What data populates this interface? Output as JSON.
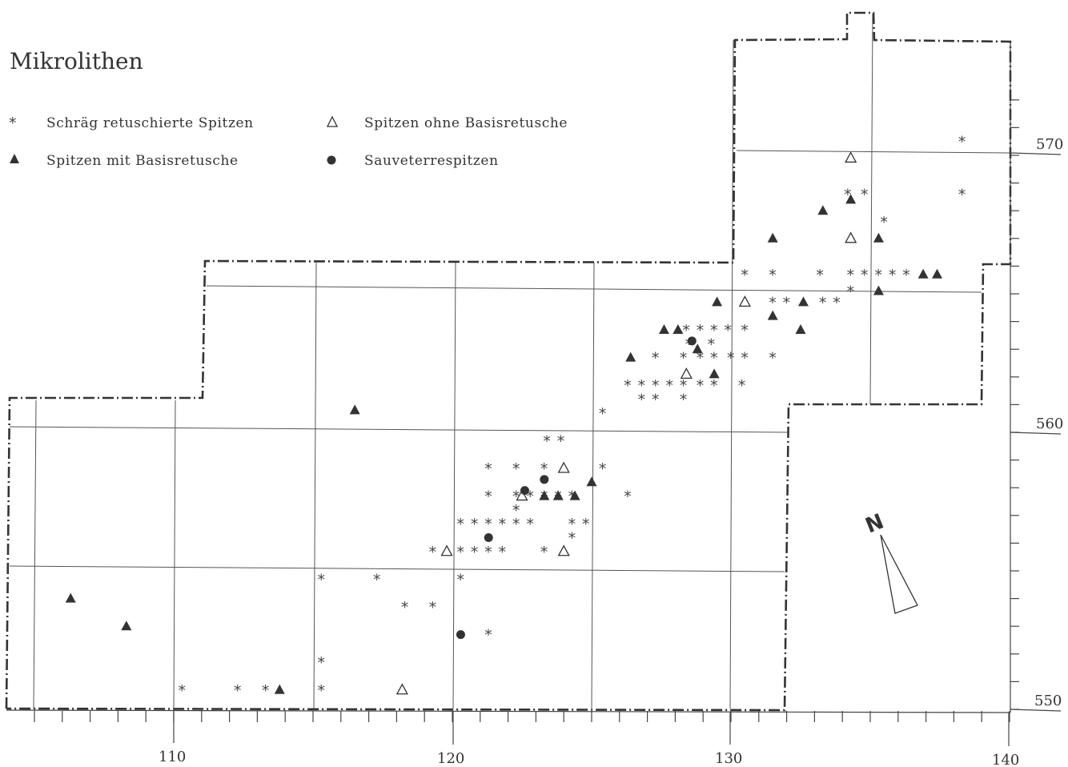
{
  "title": "Mikrolithen",
  "legend": [
    {
      "symbol": "star",
      "label": "Schräg retuschierte Spitzen"
    },
    {
      "symbol": "triangle-filled",
      "label": "Spitzen mit Basisretusche"
    },
    {
      "symbol": "triangle-open",
      "label": "Spitzen ohne Basisretusche"
    },
    {
      "symbol": "dot",
      "label": "Sauveterrespitzen"
    }
  ],
  "north_label": "N",
  "x_axis": {
    "ticks": [
      110,
      120,
      130,
      140
    ],
    "labels": [
      "110",
      "120",
      "130",
      "140"
    ]
  },
  "y_axis": {
    "ticks": [
      550,
      560,
      570
    ],
    "labels": [
      "550",
      "560",
      "570"
    ]
  },
  "colors": {
    "ink": "#333333",
    "grid": "#555555",
    "paper": "#ffffff"
  },
  "points": {
    "star": [
      [
        138.3,
        570.5
      ],
      [
        138.3,
        568.6
      ],
      [
        134.2,
        568.6
      ],
      [
        134.8,
        568.6
      ],
      [
        135.5,
        567.6
      ],
      [
        130.5,
        565.7
      ],
      [
        131.5,
        565.7
      ],
      [
        133.2,
        565.7
      ],
      [
        134.3,
        565.7
      ],
      [
        134.8,
        565.7
      ],
      [
        135.3,
        565.7
      ],
      [
        135.8,
        565.7
      ],
      [
        136.3,
        565.7
      ],
      [
        134.3,
        565.1
      ],
      [
        131.5,
        564.7
      ],
      [
        132.0,
        564.7
      ],
      [
        133.3,
        564.7
      ],
      [
        133.8,
        564.7
      ],
      [
        128.4,
        563.7
      ],
      [
        128.9,
        563.7
      ],
      [
        129.4,
        563.7
      ],
      [
        129.9,
        563.7
      ],
      [
        130.5,
        563.7
      ],
      [
        128.5,
        563.2
      ],
      [
        129.3,
        563.2
      ],
      [
        127.3,
        562.7
      ],
      [
        128.3,
        562.7
      ],
      [
        128.9,
        562.7
      ],
      [
        129.4,
        562.7
      ],
      [
        130.0,
        562.7
      ],
      [
        130.5,
        562.7
      ],
      [
        131.5,
        562.7
      ],
      [
        126.3,
        561.7
      ],
      [
        126.8,
        561.7
      ],
      [
        127.3,
        561.7
      ],
      [
        127.8,
        561.7
      ],
      [
        128.3,
        561.7
      ],
      [
        128.9,
        561.7
      ],
      [
        129.4,
        561.7
      ],
      [
        130.4,
        561.7
      ],
      [
        126.8,
        561.2
      ],
      [
        127.3,
        561.2
      ],
      [
        128.3,
        561.2
      ],
      [
        125.4,
        560.7
      ],
      [
        123.4,
        559.7
      ],
      [
        123.9,
        559.7
      ],
      [
        121.3,
        558.7
      ],
      [
        122.3,
        558.7
      ],
      [
        123.3,
        558.7
      ],
      [
        125.4,
        558.7
      ],
      [
        121.3,
        557.7
      ],
      [
        122.3,
        557.7
      ],
      [
        122.8,
        557.7
      ],
      [
        123.3,
        557.7
      ],
      [
        123.8,
        557.7
      ],
      [
        124.3,
        557.7
      ],
      [
        126.3,
        557.7
      ],
      [
        122.3,
        557.2
      ],
      [
        120.3,
        556.7
      ],
      [
        120.8,
        556.7
      ],
      [
        121.3,
        556.7
      ],
      [
        121.8,
        556.7
      ],
      [
        122.3,
        556.7
      ],
      [
        122.8,
        556.7
      ],
      [
        124.3,
        556.7
      ],
      [
        124.8,
        556.7
      ],
      [
        124.3,
        556.2
      ],
      [
        119.3,
        555.7
      ],
      [
        120.3,
        555.7
      ],
      [
        120.8,
        555.7
      ],
      [
        121.3,
        555.7
      ],
      [
        121.8,
        555.7
      ],
      [
        123.3,
        555.7
      ],
      [
        115.3,
        554.7
      ],
      [
        117.3,
        554.7
      ],
      [
        120.3,
        554.7
      ],
      [
        118.3,
        553.7
      ],
      [
        119.3,
        553.7
      ],
      [
        121.3,
        552.7
      ],
      [
        115.3,
        551.7
      ],
      [
        110.3,
        550.7
      ],
      [
        112.3,
        550.7
      ],
      [
        113.3,
        550.7
      ],
      [
        115.3,
        550.7
      ]
    ],
    "triangle-filled": [
      [
        133.3,
        568.0
      ],
      [
        134.3,
        568.4
      ],
      [
        131.5,
        567.0
      ],
      [
        135.3,
        567.0
      ],
      [
        136.9,
        565.7
      ],
      [
        137.4,
        565.7
      ],
      [
        135.3,
        565.1
      ],
      [
        129.5,
        564.7
      ],
      [
        132.6,
        564.7
      ],
      [
        131.5,
        564.2
      ],
      [
        132.5,
        563.7
      ],
      [
        127.6,
        563.7
      ],
      [
        128.1,
        563.7
      ],
      [
        128.8,
        563.0
      ],
      [
        126.4,
        562.7
      ],
      [
        129.4,
        562.1
      ],
      [
        116.5,
        560.8
      ],
      [
        125.0,
        558.2
      ],
      [
        123.3,
        557.7
      ],
      [
        123.8,
        557.7
      ],
      [
        124.4,
        557.7
      ],
      [
        106.3,
        554.0
      ],
      [
        108.3,
        553.0
      ],
      [
        113.8,
        550.7
      ]
    ],
    "triangle-open": [
      [
        134.3,
        569.9
      ],
      [
        134.3,
        567.0
      ],
      [
        130.5,
        564.7
      ],
      [
        128.4,
        562.1
      ],
      [
        124.0,
        558.7
      ],
      [
        122.5,
        557.7
      ],
      [
        119.8,
        555.7
      ],
      [
        124.0,
        555.7
      ],
      [
        118.2,
        550.7
      ]
    ],
    "dot": [
      [
        128.6,
        563.3
      ],
      [
        123.3,
        558.3
      ],
      [
        122.6,
        557.9
      ],
      [
        121.3,
        556.2
      ],
      [
        120.3,
        552.7
      ]
    ]
  }
}
